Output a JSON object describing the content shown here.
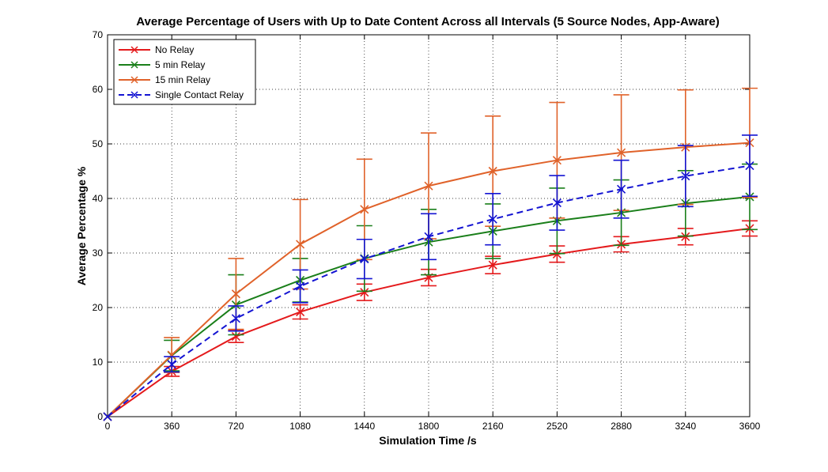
{
  "chart_data": {
    "type": "line",
    "title": "Average Percentage of Users with Up to Date Content Across all Intervals (5 Source Nodes, App-Aware)",
    "xlabel": "Simulation Time /s",
    "ylabel": "Average Percentage %",
    "xlim": [
      0,
      3600
    ],
    "ylim": [
      0,
      70
    ],
    "xticks": [
      0,
      360,
      720,
      1080,
      1440,
      1800,
      2160,
      2520,
      2880,
      3240,
      3600
    ],
    "yticks": [
      0,
      10,
      20,
      30,
      40,
      50,
      60,
      70
    ],
    "grid": true,
    "legend_position": "top-left",
    "x": [
      0,
      360,
      720,
      1080,
      1440,
      1800,
      2160,
      2520,
      2880,
      3240,
      3600
    ],
    "series": [
      {
        "name": "No Relay",
        "color": "#e41a1c",
        "line_style": "solid",
        "marker": "x",
        "values": [
          0,
          8.3,
          14.7,
          19.2,
          22.8,
          25.5,
          27.8,
          29.8,
          31.6,
          33.0,
          34.5
        ],
        "error": [
          0,
          0.9,
          1.1,
          1.3,
          1.5,
          1.5,
          1.6,
          1.5,
          1.4,
          1.5,
          1.4
        ]
      },
      {
        "name": "5 min Relay",
        "color": "#1a7f1a",
        "line_style": "solid",
        "marker": "x",
        "values": [
          0,
          11.2,
          20.5,
          25.0,
          29.0,
          32.0,
          34.0,
          35.9,
          37.4,
          39.1,
          40.3
        ],
        "error": [
          0,
          2.8,
          5.5,
          4.0,
          6.0,
          6.0,
          5.0,
          6.0,
          6.0,
          6.0,
          6.0
        ]
      },
      {
        "name": "15 min Relay",
        "color": "#e0622a",
        "line_style": "solid",
        "marker": "x",
        "values": [
          0,
          11.3,
          22.5,
          31.6,
          38.0,
          42.3,
          45.0,
          47.0,
          48.4,
          49.4,
          50.2
        ],
        "error": [
          0,
          3.2,
          6.5,
          8.2,
          9.2,
          9.7,
          10.1,
          10.6,
          10.6,
          10.5,
          10.0
        ]
      },
      {
        "name": "Single Contact Relay",
        "color": "#1414d2",
        "line_style": "dashed",
        "marker": "x",
        "values": [
          0,
          9.6,
          18.0,
          23.9,
          28.9,
          33.0,
          36.2,
          39.2,
          41.7,
          44.1,
          46.0
        ],
        "error": [
          0,
          1.4,
          2.3,
          3.0,
          3.6,
          4.2,
          4.7,
          5.0,
          5.3,
          5.6,
          5.6
        ]
      }
    ]
  }
}
